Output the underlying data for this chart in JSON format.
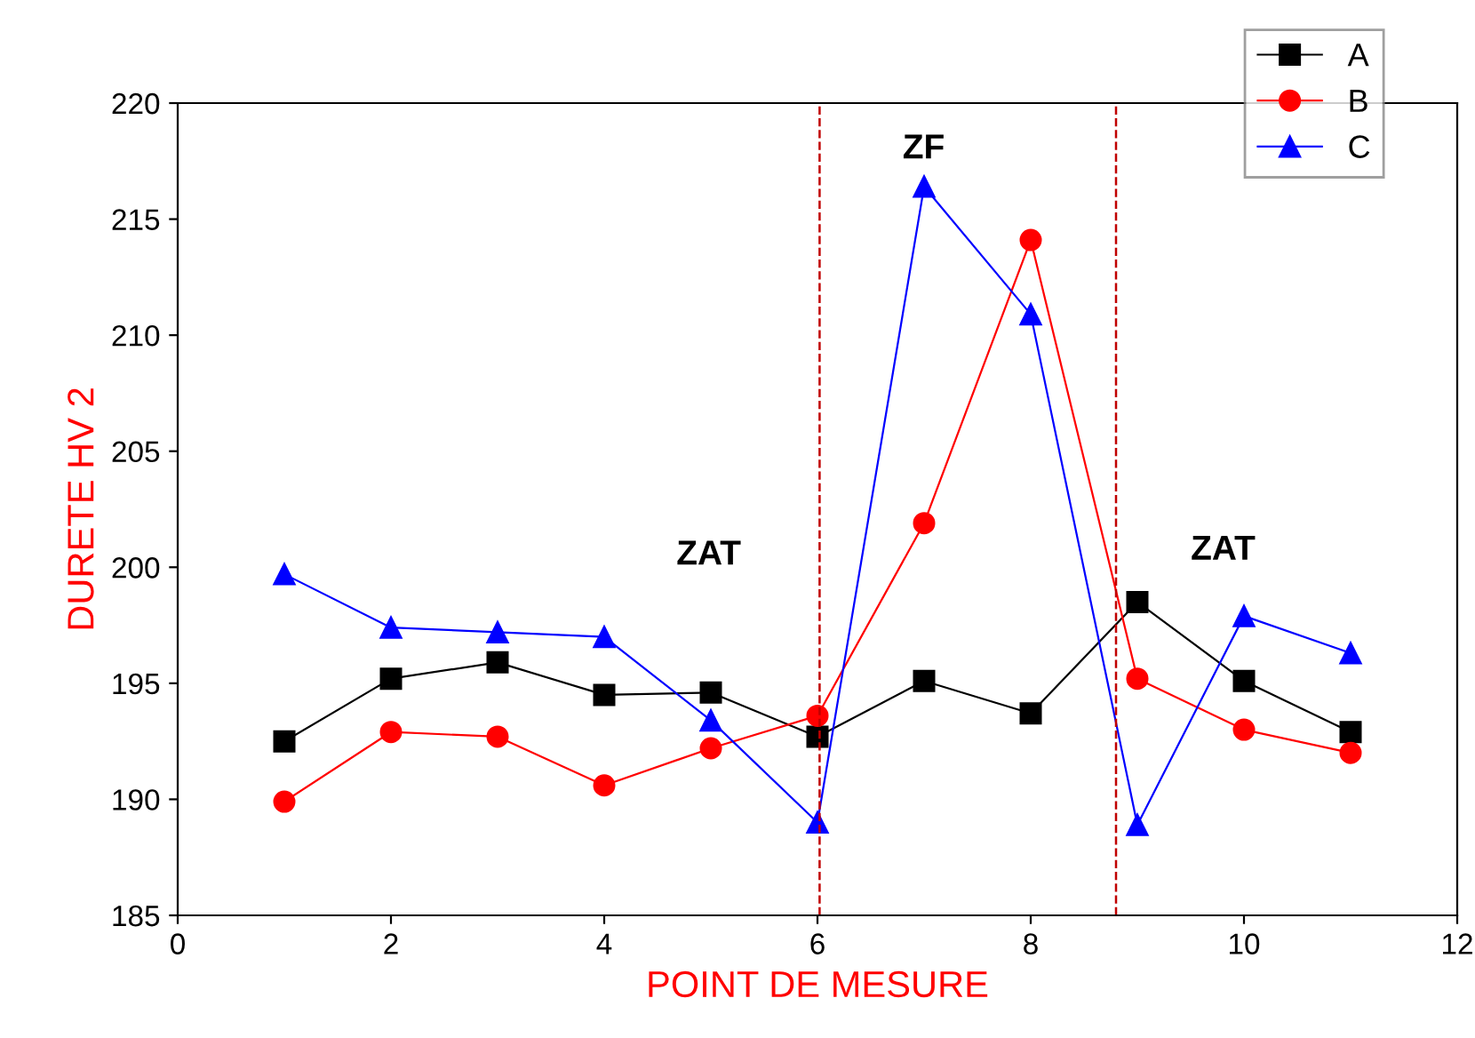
{
  "chart_data": {
    "type": "line",
    "xlabel": "POINT DE MESURE",
    "ylabel": "DURETE HV 2",
    "x": [
      1,
      2,
      3,
      4,
      5,
      6,
      7,
      8,
      9,
      10,
      11
    ],
    "series": [
      {
        "name": "A",
        "color": "#000000",
        "marker": "square",
        "values": [
          192.5,
          195.2,
          195.9,
          194.5,
          194.6,
          192.7,
          195.1,
          193.7,
          198.5,
          195.1,
          192.9
        ]
      },
      {
        "name": "B",
        "color": "#ff0000",
        "marker": "circle",
        "values": [
          189.9,
          192.9,
          192.7,
          190.6,
          192.2,
          193.6,
          201.9,
          214.1,
          195.2,
          193.0,
          192.0
        ]
      },
      {
        "name": "C",
        "color": "#0000ff",
        "marker": "triangle",
        "values": [
          199.7,
          197.4,
          197.2,
          197.0,
          193.4,
          189.0,
          216.4,
          210.9,
          188.9,
          197.9,
          196.3
        ]
      }
    ],
    "xlim": [
      0,
      12
    ],
    "xticks": [
      0,
      2,
      4,
      6,
      8,
      10,
      12
    ],
    "ylim": [
      185,
      220
    ],
    "yticks": [
      185,
      190,
      195,
      200,
      205,
      210,
      215,
      220
    ],
    "ref_lines": [
      {
        "axis": "x",
        "value": 6.02,
        "color": "#c00000",
        "line_style": "dashed"
      },
      {
        "axis": "x",
        "value": 8.8,
        "color": "#c00000",
        "line_style": "dashed"
      }
    ],
    "annotations": [
      "ZAT",
      "ZF",
      "ZAT"
    ],
    "legend": "top right",
    "grid": false
  }
}
